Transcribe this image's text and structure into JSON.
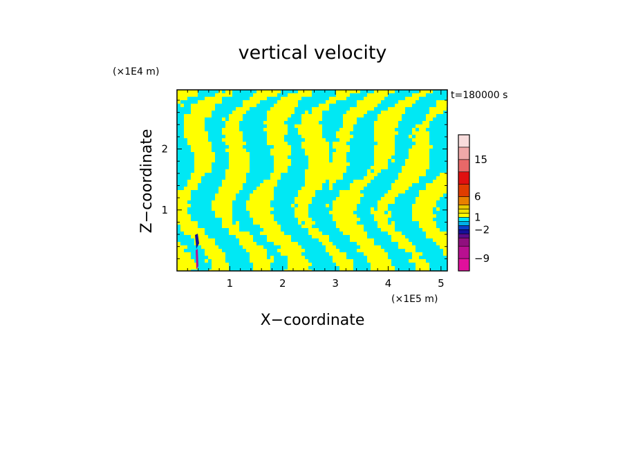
{
  "chart_data": {
    "type": "heatmap",
    "title": "vertical velocity",
    "xlabel": "X−coordinate",
    "ylabel": "Z−coordinate",
    "x_scale_label": "(×1E5 m)",
    "y_scale_label": "(×1E4 m)",
    "time_label": "t=180000 s",
    "xlim": [
      0,
      5.12
    ],
    "ylim": [
      0,
      2.97
    ],
    "x_ticks": [
      "1",
      "2",
      "3",
      "4",
      "5"
    ],
    "y_ticks": [
      "1",
      "2"
    ],
    "colorbar": {
      "labels": [
        "15",
        "6",
        "1",
        "−2",
        "−9"
      ],
      "levels": [
        -12,
        -9,
        -6,
        -4,
        -3,
        -2,
        -1,
        0,
        1,
        2,
        3,
        4,
        6,
        9,
        12,
        15,
        18,
        21
      ],
      "colors": [
        "#e0109c",
        "#b81090",
        "#90107e",
        "#5a0c8c",
        "#16109a",
        "#0a40c8",
        "#00b0e8",
        "#00e8f4",
        "#ffff00",
        "#f0e000",
        "#e8c800",
        "#e88000",
        "#e03c00",
        "#e01010",
        "#e86868",
        "#f0a8a8",
        "#f8dcdc"
      ]
    },
    "dominant_colors": {
      "positive": "#ffff00",
      "negative": "#00e8f4"
    }
  }
}
